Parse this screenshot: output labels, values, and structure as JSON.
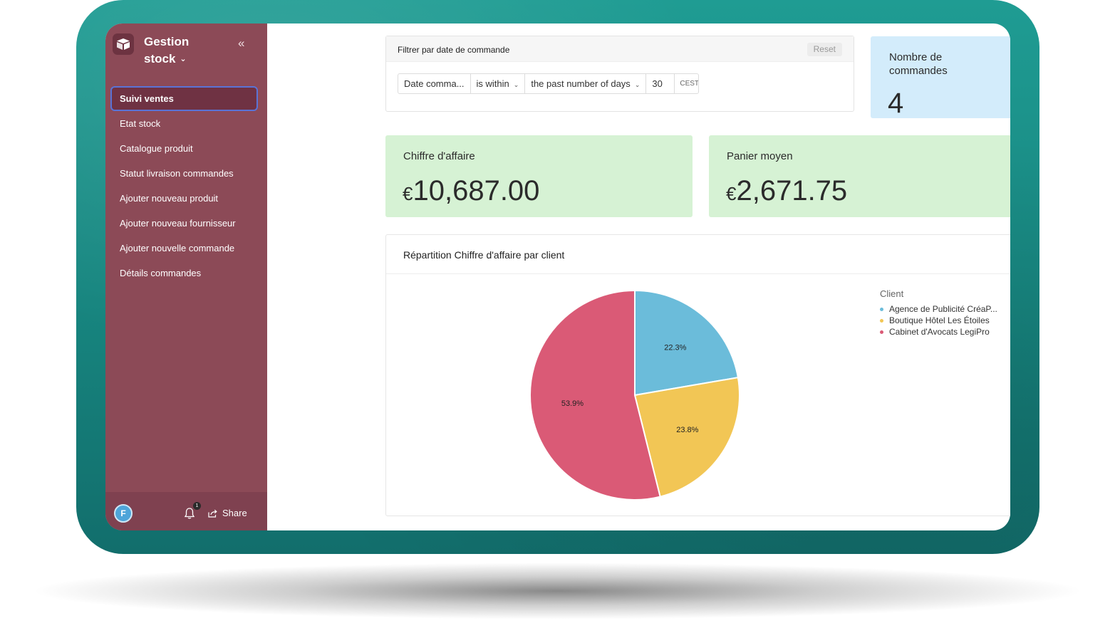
{
  "app": {
    "title": "Gestion stock",
    "title_line1": "Gestion",
    "title_line2": "stock",
    "collapse_icon": "double-chevron-left-icon"
  },
  "sidebar": {
    "items": [
      {
        "label": "Suivi ventes",
        "active": true
      },
      {
        "label": "Etat stock",
        "active": false
      },
      {
        "label": "Catalogue produit",
        "active": false
      },
      {
        "label": "Statut livraison commandes",
        "active": false
      },
      {
        "label": "Ajouter nouveau produit",
        "active": false
      },
      {
        "label": "Ajouter nouveau fournisseur",
        "active": false
      },
      {
        "label": "Ajouter nouvelle commande",
        "active": false
      },
      {
        "label": "Détails commandes",
        "active": false
      }
    ],
    "footer": {
      "avatar_initial": "F",
      "notification_count": "1",
      "share_label": "Share"
    }
  },
  "filter": {
    "title": "Filtrer par date de commande",
    "reset_label": "Reset",
    "field": "Date comma...",
    "operator": "is within",
    "range": "the past number of days",
    "value": "30",
    "timezone": "CEST"
  },
  "kpis": {
    "orders": {
      "label": "Nombre de commandes",
      "value": "4"
    },
    "revenue": {
      "label": "Chiffre d'affaire",
      "currency": "€",
      "value": "10,687.00"
    },
    "basket": {
      "label": "Panier moyen",
      "currency": "€",
      "value": "2,671.75"
    }
  },
  "colors": {
    "sidebar": "#8c4a57",
    "slice_agence": "#6bbcda",
    "slice_boutique": "#f2c655",
    "slice_cabinet": "#da5a76",
    "kpi_blue": "#d3ecfb",
    "kpi_green": "#d6f2d4"
  },
  "chart_data": {
    "type": "pie",
    "title": "Répartition Chiffre d'affaire par client",
    "legend_title": "Client",
    "legend_position": "top-right",
    "slices": [
      {
        "name": "Agence de Publicité CréaP...",
        "value": 22.3,
        "label": "22.3%",
        "color": "#6bbcda"
      },
      {
        "name": "Boutique Hôtel Les Étoiles",
        "value": 23.8,
        "label": "23.8%",
        "color": "#f2c655"
      },
      {
        "name": "Cabinet d'Avocats LegiPro",
        "value": 53.9,
        "label": "53.9%",
        "color": "#da5a76"
      }
    ]
  }
}
